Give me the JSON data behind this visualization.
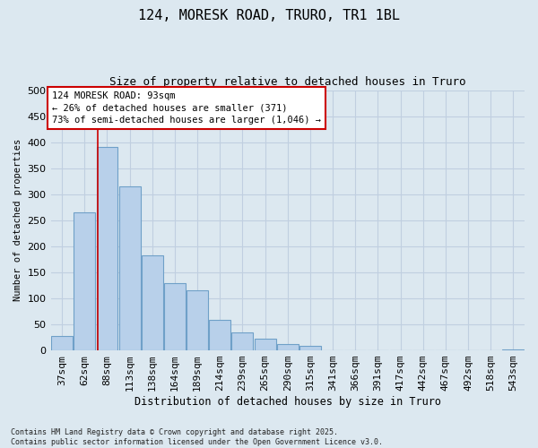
{
  "title_line1": "124, MORESK ROAD, TRURO, TR1 1BL",
  "title_line2": "Size of property relative to detached houses in Truro",
  "xlabel": "Distribution of detached houses by size in Truro",
  "ylabel": "Number of detached properties",
  "categories": [
    "37sqm",
    "62sqm",
    "88sqm",
    "113sqm",
    "138sqm",
    "164sqm",
    "189sqm",
    "214sqm",
    "239sqm",
    "265sqm",
    "290sqm",
    "315sqm",
    "341sqm",
    "366sqm",
    "391sqm",
    "417sqm",
    "442sqm",
    "467sqm",
    "492sqm",
    "518sqm",
    "543sqm"
  ],
  "values": [
    28,
    265,
    390,
    315,
    182,
    130,
    116,
    58,
    35,
    23,
    12,
    8,
    0,
    0,
    0,
    0,
    0,
    1,
    0,
    0,
    2
  ],
  "bar_color": "#b8d0ea",
  "bar_edge_color": "#6fa0c8",
  "vline_x": 1.6,
  "vline_color": "#cc0000",
  "annotation_text": "124 MORESK ROAD: 93sqm\n← 26% of detached houses are smaller (371)\n73% of semi-detached houses are larger (1,046) →",
  "annotation_box_color": "#ffffff",
  "annotation_box_edge": "#cc0000",
  "grid_color": "#c0cfe0",
  "background_color": "#dce8f0",
  "ylim": [
    0,
    500
  ],
  "yticks": [
    0,
    50,
    100,
    150,
    200,
    250,
    300,
    350,
    400,
    450,
    500
  ],
  "footer_line1": "Contains HM Land Registry data © Crown copyright and database right 2025.",
  "footer_line2": "Contains public sector information licensed under the Open Government Licence v3.0."
}
